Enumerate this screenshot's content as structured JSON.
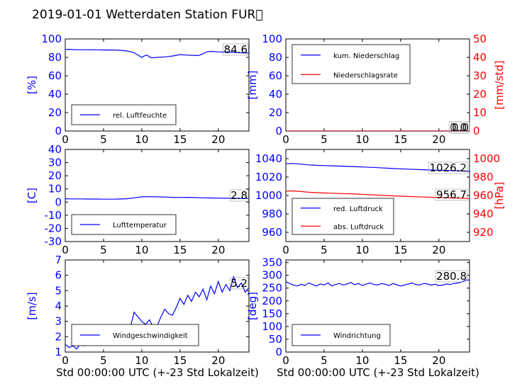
{
  "title": "2019-01-01 Wetterdaten Station FUR\u0000",
  "xlabel": "Std 00:00:00 UTC (+-23 Std Lokalzeit)",
  "colors": {
    "primary": "#0000ff",
    "secondary": "#ff0000"
  },
  "chart_data": [
    {
      "type": "line",
      "ylabel": "[%]",
      "xlim": [
        0,
        24
      ],
      "ylim": [
        0,
        100
      ],
      "xticks": [
        0,
        5,
        10,
        15,
        20
      ],
      "yticks": [
        0,
        20,
        40,
        60,
        80,
        100
      ],
      "series": [
        {
          "name": "rel. Luftfeuchte",
          "color": "#0000ff",
          "x": [
            0,
            0.5,
            1,
            2,
            3,
            4,
            5,
            6,
            7,
            8,
            8.5,
            9,
            9.5,
            10,
            10.3,
            10.7,
            11,
            11.3,
            12,
            13,
            14,
            15,
            16,
            17,
            17.5,
            18,
            18.5,
            19,
            20,
            21,
            22,
            23,
            24
          ],
          "y": [
            88.5,
            88.8,
            88.5,
            88.2,
            88.3,
            88.2,
            88.0,
            88.1,
            87.8,
            87.0,
            86.2,
            85.0,
            82.5,
            80.0,
            81.5,
            82.5,
            80.5,
            79.5,
            80.0,
            80.5,
            81.5,
            83.0,
            82.5,
            82.0,
            82.2,
            84.0,
            86.0,
            86.5,
            86.0,
            85.8,
            85.5,
            85.0,
            84.6
          ]
        }
      ],
      "value_labels": [
        "84.6"
      ]
    },
    {
      "type": "line",
      "ylabel": "[mm]",
      "y2label": "[mm/std]",
      "xlim": [
        0,
        24
      ],
      "ylim": [
        0,
        100
      ],
      "y2lim": [
        0,
        50
      ],
      "xticks": [
        0,
        5,
        10,
        15,
        20
      ],
      "yticks": [
        0,
        20,
        40,
        60,
        80,
        100
      ],
      "y2ticks": [
        0,
        10,
        20,
        30,
        40,
        50
      ],
      "series": [
        {
          "name": "kum. Niederschlag",
          "color": "#0000ff",
          "axis": "left",
          "x": [
            0,
            24
          ],
          "y": [
            0,
            0
          ]
        },
        {
          "name": "Niederschlagsrate",
          "color": "#ff0000",
          "axis": "right",
          "x": [
            0,
            24
          ],
          "y": [
            0,
            0
          ]
        }
      ],
      "value_labels": [
        "0.0",
        "0.0"
      ]
    },
    {
      "type": "line",
      "ylabel": "[C]",
      "xlim": [
        0,
        24
      ],
      "ylim": [
        -30,
        40
      ],
      "xticks": [
        0,
        5,
        10,
        15,
        20
      ],
      "yticks": [
        -30,
        -20,
        -10,
        0,
        10,
        20,
        30,
        40
      ],
      "series": [
        {
          "name": "Lufttemperatur",
          "color": "#0000ff",
          "x": [
            0,
            1,
            2,
            3,
            4,
            5,
            6,
            7,
            8,
            9,
            10,
            11,
            12,
            13,
            14,
            15,
            16,
            17,
            18,
            19,
            20,
            21,
            22,
            23,
            24
          ],
          "y": [
            2.5,
            2.4,
            2.4,
            2.3,
            2.3,
            2.2,
            2.2,
            2.3,
            2.5,
            3.2,
            4.0,
            4.1,
            4.0,
            3.8,
            3.6,
            3.5,
            3.6,
            3.4,
            3.2,
            3.1,
            3.0,
            2.9,
            2.9,
            2.8,
            2.8
          ]
        }
      ],
      "value_labels": [
        "2.8"
      ]
    },
    {
      "type": "line",
      "ylabel": "",
      "y2label": "[hPa]",
      "xlim": [
        0,
        24
      ],
      "ylim": [
        950,
        1050
      ],
      "y2lim": [
        910,
        1010
      ],
      "xticks": [
        0,
        5,
        10,
        15,
        20
      ],
      "yticks": [
        960,
        980,
        1000,
        1020,
        1040
      ],
      "y2ticks": [
        920,
        940,
        960,
        980,
        1000
      ],
      "series": [
        {
          "name": "red. Luftdruck",
          "color": "#0000ff",
          "axis": "left",
          "x": [
            0,
            1,
            2,
            3,
            4,
            5,
            6,
            8,
            10,
            12,
            14,
            16,
            18,
            20,
            22,
            24
          ],
          "y": [
            1034.5,
            1034.8,
            1034.0,
            1033.2,
            1032.8,
            1032.5,
            1032.2,
            1031.6,
            1031.0,
            1030.2,
            1029.3,
            1028.6,
            1028.0,
            1027.5,
            1026.9,
            1026.2
          ]
        },
        {
          "name": "abs. Luftdruck",
          "color": "#ff0000",
          "axis": "right",
          "x": [
            0,
            1,
            2,
            3,
            4,
            5,
            6,
            8,
            10,
            12,
            14,
            16,
            18,
            20,
            22,
            24
          ],
          "y": [
            964.7,
            965.0,
            964.3,
            963.5,
            963.1,
            962.8,
            962.5,
            961.9,
            961.3,
            960.5,
            959.6,
            958.9,
            958.3,
            957.8,
            957.3,
            956.7
          ]
        }
      ],
      "value_labels": [
        "1026.2",
        "956.7"
      ]
    },
    {
      "type": "line",
      "ylabel": "[m/s]",
      "xlim": [
        0,
        24
      ],
      "ylim": [
        1,
        7
      ],
      "xticks": [
        0,
        5,
        10,
        15,
        20
      ],
      "yticks": [
        1,
        2,
        3,
        4,
        5,
        6,
        7
      ],
      "series": [
        {
          "name": "Windgeschwindigkeit",
          "color": "#0000ff",
          "x": [
            0,
            0.5,
            1,
            1.5,
            2,
            2.5,
            3,
            3.5,
            4,
            4.5,
            5,
            5.5,
            6,
            6.5,
            7,
            7.5,
            8,
            8.5,
            9,
            9.5,
            10,
            10.5,
            11,
            11.5,
            12,
            12.5,
            13,
            13.5,
            14,
            14.5,
            15,
            15.5,
            16,
            16.5,
            17,
            17.5,
            18,
            18.5,
            19,
            19.5,
            20,
            20.5,
            21,
            21.5,
            22,
            22.5,
            23,
            23.5,
            24
          ],
          "y": [
            1.5,
            1.3,
            1.4,
            1.2,
            1.6,
            1.4,
            1.7,
            1.5,
            1.6,
            1.9,
            1.7,
            2.1,
            2.0,
            1.8,
            2.2,
            2.0,
            2.4,
            2.6,
            3.6,
            3.3,
            3.0,
            2.8,
            3.1,
            2.6,
            2.7,
            3.3,
            3.8,
            3.5,
            3.4,
            3.9,
            4.5,
            4.1,
            4.7,
            4.3,
            4.9,
            4.6,
            5.1,
            4.4,
            5.3,
            4.8,
            5.6,
            4.9,
            5.4,
            5.0,
            5.9,
            5.2,
            5.5,
            4.9,
            5.2
          ]
        }
      ],
      "value_labels": [
        "5.2"
      ]
    },
    {
      "type": "line",
      "ylabel": "[deg]",
      "xlim": [
        0,
        24
      ],
      "ylim": [
        0,
        360
      ],
      "xticks": [
        0,
        5,
        10,
        15,
        20
      ],
      "yticks": [
        0,
        50,
        100,
        150,
        200,
        250,
        300,
        350
      ],
      "series": [
        {
          "name": "Windrichtung",
          "color": "#0000ff",
          "x": [
            0,
            0.5,
            1,
            1.5,
            2,
            2.5,
            3,
            3.5,
            4,
            4.5,
            5,
            5.5,
            6,
            6.5,
            7,
            7.5,
            8,
            8.5,
            9,
            9.5,
            10,
            10.5,
            11,
            11.5,
            12,
            12.5,
            13,
            13.5,
            14,
            14.5,
            15,
            15.5,
            16,
            16.5,
            17,
            17.5,
            18,
            18.5,
            19,
            19.5,
            20,
            20.5,
            21,
            21.5,
            22,
            22.5,
            23,
            23.5,
            24
          ],
          "y": [
            275,
            268,
            262,
            258,
            265,
            260,
            270,
            264,
            258,
            266,
            262,
            270,
            259,
            264,
            268,
            262,
            266,
            272,
            263,
            268,
            260,
            266,
            270,
            264,
            262,
            268,
            265,
            260,
            268,
            263,
            258,
            262,
            266,
            270,
            264,
            262,
            268,
            266,
            262,
            265,
            260,
            262,
            266,
            264,
            268,
            270,
            274,
            282,
            281
          ]
        }
      ],
      "value_labels": [
        "280.8"
      ]
    }
  ]
}
